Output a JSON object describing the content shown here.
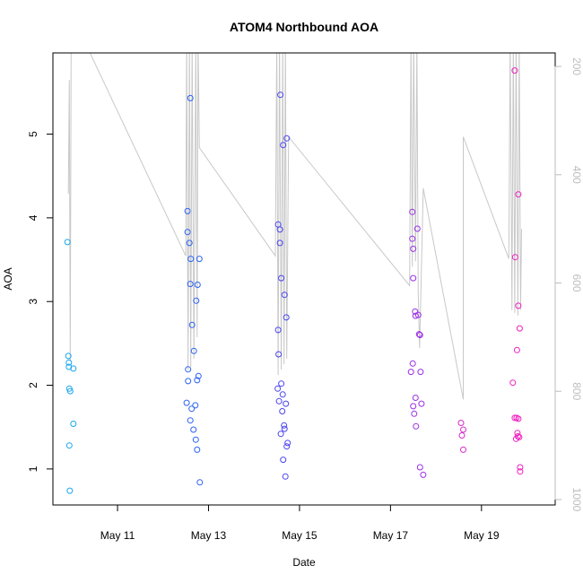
{
  "chart_data": {
    "type": "scatter",
    "title": "ATOM4 Northbound AOA",
    "xlabel": "Date",
    "ylabel": "AOA",
    "x_unit": "days (day-of-May)",
    "xlim": [
      9.58,
      20.62
    ],
    "ylim": [
      0.57,
      5.97
    ],
    "x_ticks": [
      {
        "value": 11,
        "label": "May 11"
      },
      {
        "value": 13,
        "label": "May 13"
      },
      {
        "value": 15,
        "label": "May 15"
      },
      {
        "value": 17,
        "label": "May 17"
      },
      {
        "value": 19,
        "label": "May 19"
      }
    ],
    "y_ticks": [
      1,
      2,
      3,
      4,
      5
    ],
    "secondary_axis": {
      "side": "right",
      "reversed": true,
      "range": [
        175,
        1010
      ],
      "ticks": [
        200,
        400,
        600,
        800,
        1000
      ],
      "color": "#bdbdbd"
    },
    "points": [
      {
        "x": 9.9,
        "y": 3.71,
        "color": "#1aa6ee"
      },
      {
        "x": 9.92,
        "y": 2.35,
        "color": "#1aa6ee"
      },
      {
        "x": 9.93,
        "y": 2.27,
        "color": "#1aa6ee"
      },
      {
        "x": 9.93,
        "y": 2.22,
        "color": "#1aa6ee"
      },
      {
        "x": 9.94,
        "y": 1.96,
        "color": "#1aa6ee"
      },
      {
        "x": 9.96,
        "y": 1.93,
        "color": "#1aa6ee"
      },
      {
        "x": 10.03,
        "y": 2.2,
        "color": "#1aa6ee"
      },
      {
        "x": 10.03,
        "y": 1.54,
        "color": "#1aa6ee"
      },
      {
        "x": 9.94,
        "y": 1.28,
        "color": "#1aa6ee"
      },
      {
        "x": 9.95,
        "y": 0.74,
        "color": "#1aa6ee"
      },
      {
        "x": 12.54,
        "y": 4.08,
        "color": "#2b63f4"
      },
      {
        "x": 12.54,
        "y": 3.83,
        "color": "#2b63f4"
      },
      {
        "x": 12.6,
        "y": 5.43,
        "color": "#2b63f4"
      },
      {
        "x": 12.58,
        "y": 3.7,
        "color": "#2b63f4"
      },
      {
        "x": 12.61,
        "y": 3.51,
        "color": "#2b63f4"
      },
      {
        "x": 12.8,
        "y": 3.51,
        "color": "#2b63f4"
      },
      {
        "x": 12.6,
        "y": 3.21,
        "color": "#2b63f4"
      },
      {
        "x": 12.76,
        "y": 3.2,
        "color": "#2b63f4"
      },
      {
        "x": 12.73,
        "y": 3.01,
        "color": "#2b63f4"
      },
      {
        "x": 12.64,
        "y": 2.72,
        "color": "#2b63f4"
      },
      {
        "x": 12.68,
        "y": 2.41,
        "color": "#2b63f4"
      },
      {
        "x": 12.55,
        "y": 2.19,
        "color": "#2b63f4"
      },
      {
        "x": 12.78,
        "y": 2.11,
        "color": "#2b63f4"
      },
      {
        "x": 12.55,
        "y": 2.05,
        "color": "#2b63f4"
      },
      {
        "x": 12.75,
        "y": 2.06,
        "color": "#2b63f4"
      },
      {
        "x": 12.52,
        "y": 1.79,
        "color": "#2b63f4"
      },
      {
        "x": 12.71,
        "y": 1.76,
        "color": "#2b63f4"
      },
      {
        "x": 12.63,
        "y": 1.72,
        "color": "#2b63f4"
      },
      {
        "x": 12.6,
        "y": 1.58,
        "color": "#2b63f4"
      },
      {
        "x": 12.67,
        "y": 1.47,
        "color": "#2b63f4"
      },
      {
        "x": 12.72,
        "y": 1.35,
        "color": "#2b63f4"
      },
      {
        "x": 12.75,
        "y": 1.23,
        "color": "#2b63f4"
      },
      {
        "x": 12.81,
        "y": 0.84,
        "color": "#2b63f4"
      },
      {
        "x": 14.58,
        "y": 5.47,
        "color": "#4a44f2"
      },
      {
        "x": 14.64,
        "y": 4.87,
        "color": "#4a44f2"
      },
      {
        "x": 14.72,
        "y": 4.95,
        "color": "#4a44f2"
      },
      {
        "x": 14.53,
        "y": 3.92,
        "color": "#4a44f2"
      },
      {
        "x": 14.57,
        "y": 3.86,
        "color": "#4a44f2"
      },
      {
        "x": 14.57,
        "y": 3.7,
        "color": "#4a44f2"
      },
      {
        "x": 14.6,
        "y": 3.28,
        "color": "#4a44f2"
      },
      {
        "x": 14.67,
        "y": 3.08,
        "color": "#4a44f2"
      },
      {
        "x": 14.71,
        "y": 2.81,
        "color": "#4a44f2"
      },
      {
        "x": 14.53,
        "y": 2.66,
        "color": "#4a44f2"
      },
      {
        "x": 14.54,
        "y": 2.37,
        "color": "#4a44f2"
      },
      {
        "x": 14.6,
        "y": 2.02,
        "color": "#4a44f2"
      },
      {
        "x": 14.52,
        "y": 1.96,
        "color": "#4a44f2"
      },
      {
        "x": 14.63,
        "y": 1.89,
        "color": "#4a44f2"
      },
      {
        "x": 14.55,
        "y": 1.81,
        "color": "#4a44f2"
      },
      {
        "x": 14.7,
        "y": 1.78,
        "color": "#4a44f2"
      },
      {
        "x": 14.62,
        "y": 1.69,
        "color": "#4a44f2"
      },
      {
        "x": 14.66,
        "y": 1.52,
        "color": "#4a44f2"
      },
      {
        "x": 14.67,
        "y": 1.48,
        "color": "#4a44f2"
      },
      {
        "x": 14.59,
        "y": 1.42,
        "color": "#4a44f2"
      },
      {
        "x": 14.74,
        "y": 1.31,
        "color": "#4a44f2"
      },
      {
        "x": 14.72,
        "y": 1.27,
        "color": "#4a44f2"
      },
      {
        "x": 14.64,
        "y": 1.11,
        "color": "#4a44f2"
      },
      {
        "x": 14.69,
        "y": 0.91,
        "color": "#4a44f2"
      },
      {
        "x": 17.48,
        "y": 4.07,
        "color": "#9b30e6"
      },
      {
        "x": 17.48,
        "y": 3.75,
        "color": "#9b30e6"
      },
      {
        "x": 17.59,
        "y": 3.87,
        "color": "#9b30e6"
      },
      {
        "x": 17.5,
        "y": 3.63,
        "color": "#9b30e6"
      },
      {
        "x": 17.5,
        "y": 3.28,
        "color": "#9b30e6"
      },
      {
        "x": 17.54,
        "y": 2.88,
        "color": "#9b30e6"
      },
      {
        "x": 17.55,
        "y": 2.83,
        "color": "#9b30e6"
      },
      {
        "x": 17.61,
        "y": 2.84,
        "color": "#9b30e6"
      },
      {
        "x": 17.63,
        "y": 2.61,
        "color": "#9b30e6"
      },
      {
        "x": 17.65,
        "y": 2.6,
        "color": "#9b30e6"
      },
      {
        "x": 17.49,
        "y": 2.26,
        "color": "#9b30e6"
      },
      {
        "x": 17.45,
        "y": 2.16,
        "color": "#9b30e6"
      },
      {
        "x": 17.66,
        "y": 2.16,
        "color": "#9b30e6"
      },
      {
        "x": 17.55,
        "y": 1.85,
        "color": "#9b30e6"
      },
      {
        "x": 17.68,
        "y": 1.78,
        "color": "#9b30e6"
      },
      {
        "x": 17.5,
        "y": 1.75,
        "color": "#9b30e6"
      },
      {
        "x": 17.52,
        "y": 1.66,
        "color": "#9b30e6"
      },
      {
        "x": 17.56,
        "y": 1.51,
        "color": "#9b30e6"
      },
      {
        "x": 17.65,
        "y": 1.02,
        "color": "#9b30e6"
      },
      {
        "x": 17.72,
        "y": 0.93,
        "color": "#9b30e6"
      },
      {
        "x": 18.55,
        "y": 1.55,
        "color": "#d62ccb"
      },
      {
        "x": 18.6,
        "y": 1.47,
        "color": "#d62ccb"
      },
      {
        "x": 18.57,
        "y": 1.4,
        "color": "#d62ccb"
      },
      {
        "x": 18.6,
        "y": 1.23,
        "color": "#d62ccb"
      },
      {
        "x": 19.73,
        "y": 5.76,
        "color": "#f01fbe"
      },
      {
        "x": 19.81,
        "y": 4.28,
        "color": "#f01fbe"
      },
      {
        "x": 19.74,
        "y": 3.53,
        "color": "#f01fbe"
      },
      {
        "x": 19.81,
        "y": 2.95,
        "color": "#f01fbe"
      },
      {
        "x": 19.84,
        "y": 2.68,
        "color": "#f01fbe"
      },
      {
        "x": 19.78,
        "y": 2.42,
        "color": "#f01fbe"
      },
      {
        "x": 19.69,
        "y": 2.03,
        "color": "#f01fbe"
      },
      {
        "x": 19.73,
        "y": 1.61,
        "color": "#f01fbe"
      },
      {
        "x": 19.77,
        "y": 1.61,
        "color": "#f01fbe"
      },
      {
        "x": 19.81,
        "y": 1.6,
        "color": "#f01fbe"
      },
      {
        "x": 19.79,
        "y": 1.43,
        "color": "#f01fbe"
      },
      {
        "x": 19.8,
        "y": 1.39,
        "color": "#f01fbe"
      },
      {
        "x": 19.76,
        "y": 1.36,
        "color": "#f01fbe"
      },
      {
        "x": 19.83,
        "y": 1.38,
        "color": "#f01fbe"
      },
      {
        "x": 19.85,
        "y": 1.02,
        "color": "#f01fbe"
      },
      {
        "x": 19.85,
        "y": 0.97,
        "color": "#f01fbe"
      }
    ],
    "secondary_line": {
      "color": "#c8c8c8",
      "points": [
        [
          9.92,
          435
        ],
        [
          9.94,
          225
        ],
        [
          9.96,
          745
        ],
        [
          9.98,
          160
        ],
        [
          10.2,
          140
        ],
        [
          12.5,
          550
        ],
        [
          12.52,
          150
        ],
        [
          12.55,
          760
        ],
        [
          12.58,
          150
        ],
        [
          12.61,
          755
        ],
        [
          12.64,
          150
        ],
        [
          12.68,
          740
        ],
        [
          12.72,
          155
        ],
        [
          12.75,
          700
        ],
        [
          12.77,
          150
        ],
        [
          12.8,
          350
        ],
        [
          14.47,
          550
        ],
        [
          14.5,
          150
        ],
        [
          14.53,
          770
        ],
        [
          14.56,
          150
        ],
        [
          14.6,
          760
        ],
        [
          14.63,
          150
        ],
        [
          14.66,
          750
        ],
        [
          14.69,
          150
        ],
        [
          14.72,
          740
        ],
        [
          14.76,
          330
        ],
        [
          17.42,
          605
        ],
        [
          17.45,
          150
        ],
        [
          17.48,
          570
        ],
        [
          17.51,
          150
        ],
        [
          17.55,
          560
        ],
        [
          17.58,
          150
        ],
        [
          17.61,
          620
        ],
        [
          17.64,
          720
        ],
        [
          17.72,
          425
        ],
        [
          18.6,
          815
        ],
        [
          18.6,
          330
        ],
        [
          19.6,
          555
        ],
        [
          19.63,
          150
        ],
        [
          19.67,
          650
        ],
        [
          19.7,
          150
        ],
        [
          19.73,
          655
        ],
        [
          19.76,
          150
        ],
        [
          19.8,
          660
        ],
        [
          19.83,
          150
        ],
        [
          19.86,
          650
        ],
        [
          19.88,
          500
        ]
      ]
    }
  }
}
